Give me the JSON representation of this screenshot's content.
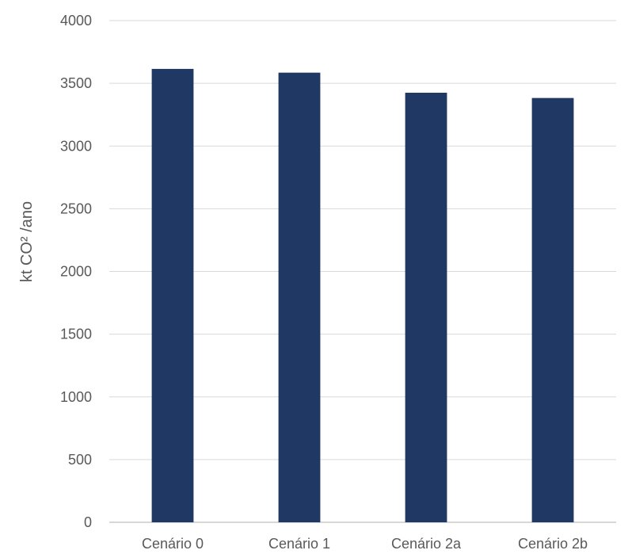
{
  "chart_data": {
    "type": "bar",
    "title": "",
    "xlabel": "",
    "ylabel": "kt CO² /ano",
    "categories": [
      "Cenário 0",
      "Cenário 1",
      "Cenário 2a",
      "Cenário 2b"
    ],
    "values": [
      3615,
      3585,
      3425,
      3383
    ],
    "ylim": [
      0,
      4000
    ],
    "yticks": [
      0,
      500,
      1000,
      1500,
      2000,
      2500,
      3000,
      3500,
      4000
    ],
    "bar_color": "#203864",
    "grid": true,
    "legend": "none"
  }
}
